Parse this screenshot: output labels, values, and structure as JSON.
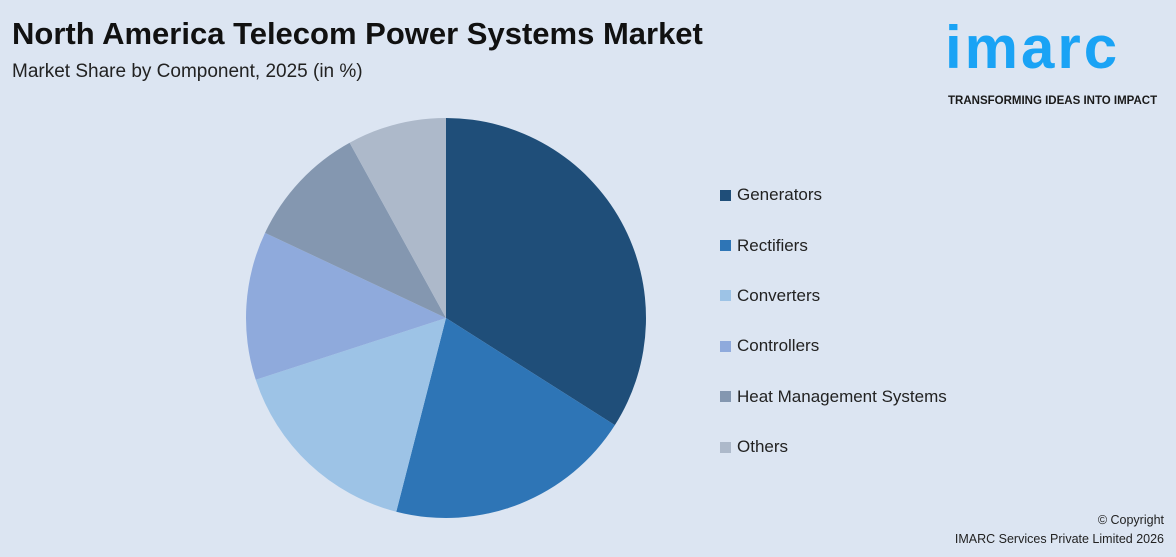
{
  "header": {
    "title": "North America Telecom Power Systems Market",
    "subtitle": "Market Share by Component, 2025 (in %)"
  },
  "logo": {
    "word": "imarc",
    "tagline": "TRANSFORMING IDEAS INTO IMPACT",
    "color": "#1aa3f5"
  },
  "chart_data": {
    "type": "pie",
    "title": "North America Telecom Power Systems Market",
    "subtitle": "Market Share by Component, 2025 (in %)",
    "start_angle": "top, clockwise",
    "legend_position": "right",
    "categories": [
      "Generators",
      "Rectifiers",
      "Converters",
      "Controllers",
      "Heat Management Systems",
      "Others"
    ],
    "values": [
      34,
      20,
      16,
      12,
      10,
      8
    ],
    "colors": [
      "#1f4e79",
      "#2e75b6",
      "#9dc3e6",
      "#8faadc",
      "#8497b0",
      "#adb9ca"
    ]
  },
  "footer": {
    "copyright_line1": "© Copyright",
    "copyright_line2": "IMARC Services Private Limited 2026"
  }
}
